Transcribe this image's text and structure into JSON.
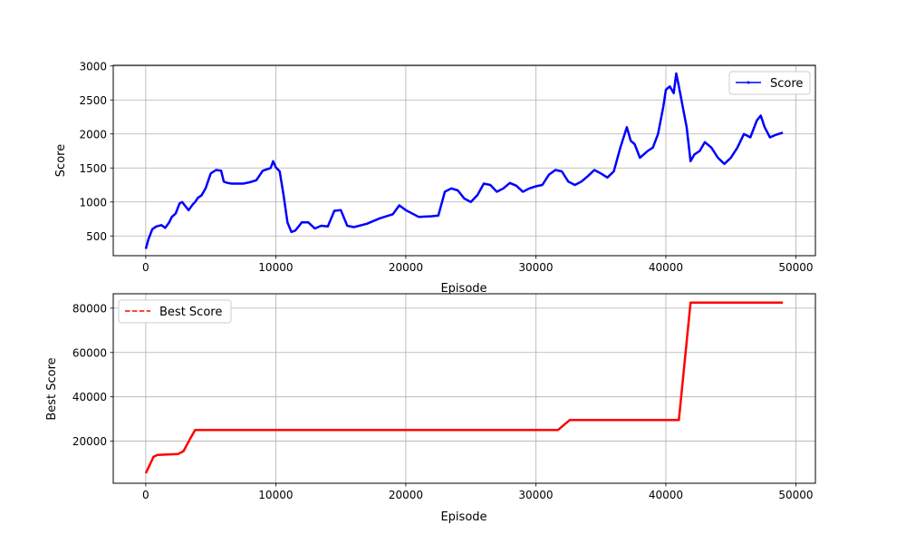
{
  "chart_data": [
    {
      "type": "line",
      "xlabel": "Episode",
      "ylabel": "Score",
      "xlim": [
        -2500,
        51500
      ],
      "ylim": [
        210,
        3010
      ],
      "xticks": [
        0,
        10000,
        20000,
        30000,
        40000,
        50000
      ],
      "xtick_labels": [
        "0",
        "10000",
        "20000",
        "30000",
        "40000",
        "50000"
      ],
      "yticks": [
        500,
        1000,
        1500,
        2000,
        2500,
        3000
      ],
      "ytick_labels": [
        "500",
        "1000",
        "1500",
        "2000",
        "2500",
        "3000"
      ],
      "grid": true,
      "legend_position": "upper right",
      "series": [
        {
          "name": "Score",
          "color": "#0000ff",
          "linestyle": "solid",
          "x": [
            0,
            200,
            500,
            800,
            1200,
            1500,
            1800,
            2000,
            2300,
            2600,
            2800,
            3000,
            3300,
            3600,
            3800,
            4000,
            4300,
            4600,
            5000,
            5400,
            5800,
            6000,
            6300,
            6600,
            7000,
            7500,
            8000,
            8500,
            9000,
            9300,
            9600,
            9800,
            10000,
            10300,
            10600,
            10900,
            11200,
            11500,
            11800,
            12000,
            12500,
            13000,
            13500,
            14000,
            14500,
            15000,
            15500,
            16000,
            17000,
            18000,
            19000,
            19500,
            20000,
            21000,
            22000,
            22500,
            23000,
            23500,
            24000,
            24500,
            25000,
            25500,
            26000,
            26500,
            27000,
            27500,
            28000,
            28500,
            29000,
            29500,
            30000,
            30500,
            31000,
            31500,
            32000,
            32500,
            33000,
            33500,
            34000,
            34500,
            35000,
            35500,
            36000,
            36500,
            37000,
            37300,
            37600,
            38000,
            38300,
            38600,
            39000,
            39400,
            39800,
            40000,
            40300,
            40600,
            40800,
            41000,
            41300,
            41600,
            41900,
            42200,
            42600,
            43000,
            43500,
            44000,
            44500,
            45000,
            45500,
            46000,
            46500,
            47000,
            47300,
            47600,
            48000,
            48500,
            49000
          ],
          "y": [
            310,
            450,
            600,
            640,
            660,
            620,
            700,
            780,
            830,
            980,
            1000,
            950,
            880,
            960,
            1000,
            1060,
            1100,
            1200,
            1420,
            1470,
            1460,
            1300,
            1280,
            1270,
            1270,
            1270,
            1290,
            1320,
            1460,
            1480,
            1500,
            1600,
            1510,
            1450,
            1100,
            700,
            560,
            580,
            650,
            700,
            700,
            610,
            650,
            640,
            870,
            880,
            650,
            630,
            680,
            760,
            820,
            950,
            880,
            780,
            790,
            800,
            1150,
            1200,
            1170,
            1050,
            1000,
            1100,
            1270,
            1250,
            1150,
            1200,
            1280,
            1240,
            1150,
            1200,
            1230,
            1250,
            1400,
            1470,
            1450,
            1300,
            1250,
            1300,
            1380,
            1470,
            1420,
            1360,
            1450,
            1800,
            2100,
            1900,
            1850,
            1650,
            1700,
            1750,
            1800,
            2000,
            2400,
            2650,
            2700,
            2600,
            2890,
            2700,
            2400,
            2100,
            1600,
            1700,
            1750,
            1880,
            1800,
            1650,
            1560,
            1650,
            1800,
            2000,
            1950,
            2200,
            2270,
            2100,
            1950,
            1990,
            2020
          ]
        }
      ]
    },
    {
      "type": "line",
      "xlabel": "Episode",
      "ylabel": "Best Score",
      "xlim": [
        -2500,
        51500
      ],
      "ylim": [
        1000,
        86500
      ],
      "xticks": [
        0,
        10000,
        20000,
        30000,
        40000,
        50000
      ],
      "xtick_labels": [
        "0",
        "10000",
        "20000",
        "30000",
        "40000",
        "50000"
      ],
      "yticks": [
        20000,
        40000,
        60000,
        80000
      ],
      "ytick_labels": [
        "20000",
        "40000",
        "60000",
        "80000"
      ],
      "grid": true,
      "legend_position": "upper left",
      "series": [
        {
          "name": "Best Score",
          "color": "#ff0000",
          "linestyle": "dashed",
          "x": [
            0,
            600,
            900,
            2500,
            2900,
            3500,
            3800,
            31700,
            32200,
            32600,
            41000,
            41900,
            49000
          ],
          "y": [
            5500,
            13000,
            13800,
            14200,
            15500,
            22000,
            25000,
            25000,
            27500,
            29500,
            29500,
            82500,
            82500
          ]
        }
      ]
    }
  ]
}
